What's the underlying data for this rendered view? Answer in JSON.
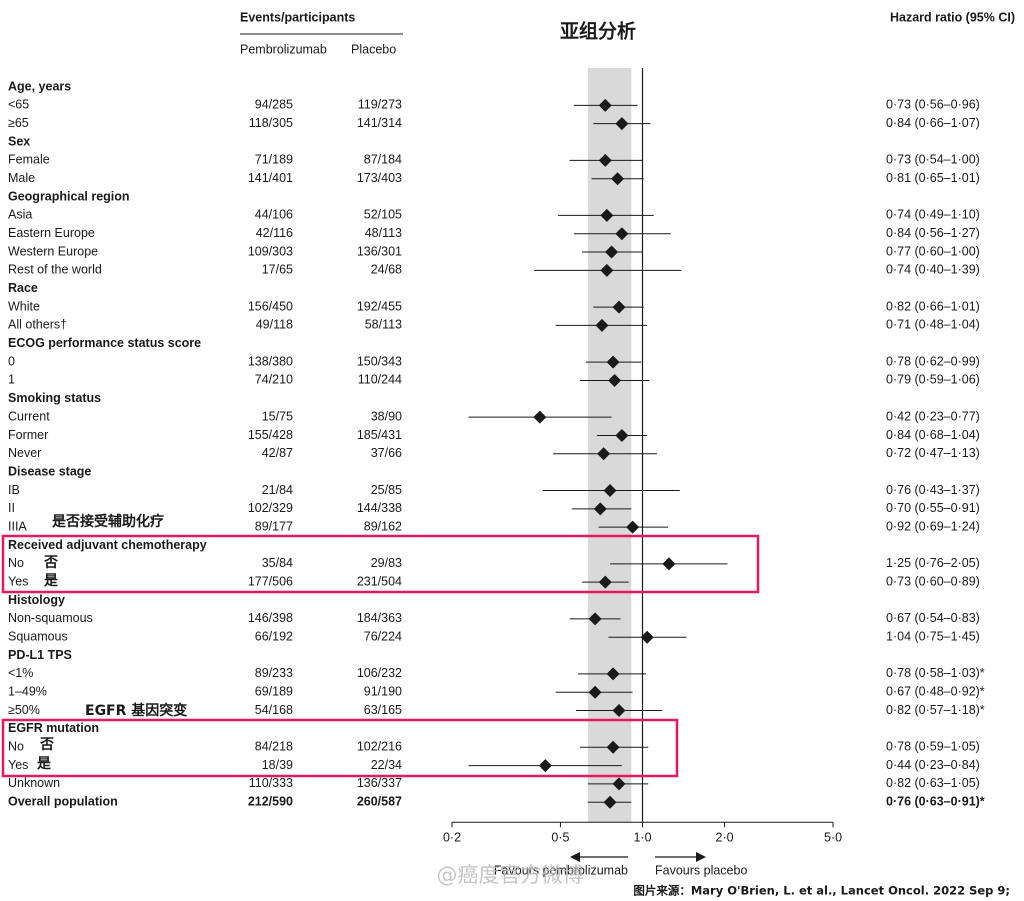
{
  "chart_data": {
    "type": "forest",
    "title": "亚组分析",
    "column_headers": {
      "events": "Events/participants",
      "pembro": "Pembrolizumab",
      "placebo": "Placebo",
      "hr": "Hazard ratio (95% CI)"
    },
    "xscale": "log",
    "xlim": [
      0.2,
      5.0
    ],
    "xticks": [
      {
        "value": 0.2,
        "label": "0·2"
      },
      {
        "value": 0.5,
        "label": "0·5"
      },
      {
        "value": 1.0,
        "label": "1·0"
      },
      {
        "value": 2.0,
        "label": "2·0"
      },
      {
        "value": 5.0,
        "label": "5·0"
      }
    ],
    "reference_line": 1.0,
    "favours_left": "Favours pembrolizumab",
    "favours_right": "Favours placebo",
    "color": "#1a1a1a",
    "band_color": "#d9d9d9",
    "rows": [
      {
        "label": "Age, years"
      },
      {
        "label": "<65",
        "pembro": "94/285",
        "placebo": "119/273",
        "hr": 0.73,
        "lo": 0.56,
        "hi": 0.96,
        "hr_label": "0·73 (0·56–0·96)"
      },
      {
        "label": "≥65",
        "pembro": "118/305",
        "placebo": "141/314",
        "hr": 0.84,
        "lo": 0.66,
        "hi": 1.07,
        "hr_label": "0·84 (0·66–1·07)"
      },
      {
        "label": "Sex"
      },
      {
        "label": "Female",
        "pembro": "71/189",
        "placebo": "87/184",
        "hr": 0.73,
        "lo": 0.54,
        "hi": 1.0,
        "hr_label": "0·73 (0·54–1·00)"
      },
      {
        "label": "Male",
        "pembro": "141/401",
        "placebo": "173/403",
        "hr": 0.81,
        "lo": 0.65,
        "hi": 1.01,
        "hr_label": "0·81 (0·65–1·01)"
      },
      {
        "label": "Geographical region"
      },
      {
        "label": "Asia",
        "pembro": "44/106",
        "placebo": "52/105",
        "hr": 0.74,
        "lo": 0.49,
        "hi": 1.1,
        "hr_label": "0·74 (0·49–1·10)"
      },
      {
        "label": "Eastern Europe",
        "pembro": "42/116",
        "placebo": "48/113",
        "hr": 0.84,
        "lo": 0.56,
        "hi": 1.27,
        "hr_label": "0·84 (0·56–1·27)"
      },
      {
        "label": "Western Europe",
        "pembro": "109/303",
        "placebo": "136/301",
        "hr": 0.77,
        "lo": 0.6,
        "hi": 1.0,
        "hr_label": "0·77 (0·60–1·00)"
      },
      {
        "label": "Rest of the world",
        "pembro": "17/65",
        "placebo": "24/68",
        "hr": 0.74,
        "lo": 0.4,
        "hi": 1.39,
        "hr_label": "0·74 (0·40–1·39)"
      },
      {
        "label": "Race"
      },
      {
        "label": "White",
        "pembro": "156/450",
        "placebo": "192/455",
        "hr": 0.82,
        "lo": 0.66,
        "hi": 1.01,
        "hr_label": "0·82 (0·66–1·01)"
      },
      {
        "label": "All others†",
        "pembro": "49/118",
        "placebo": "58/113",
        "hr": 0.71,
        "lo": 0.48,
        "hi": 1.04,
        "hr_label": "0·71 (0·48–1·04)"
      },
      {
        "label": "ECOG performance status score"
      },
      {
        "label": "0",
        "pembro": "138/380",
        "placebo": "150/343",
        "hr": 0.78,
        "lo": 0.62,
        "hi": 0.99,
        "hr_label": "0·78 (0·62–0·99)"
      },
      {
        "label": "1",
        "pembro": "74/210",
        "placebo": "110/244",
        "hr": 0.79,
        "lo": 0.59,
        "hi": 1.06,
        "hr_label": "0·79 (0·59–1·06)"
      },
      {
        "label": "Smoking status"
      },
      {
        "label": "Current",
        "pembro": "15/75",
        "placebo": "38/90",
        "hr": 0.42,
        "lo": 0.23,
        "hi": 0.77,
        "hr_label": "0·42 (0·23–0·77)"
      },
      {
        "label": "Former",
        "pembro": "155/428",
        "placebo": "185/431",
        "hr": 0.84,
        "lo": 0.68,
        "hi": 1.04,
        "hr_label": "0·84 (0·68–1·04)"
      },
      {
        "label": "Never",
        "pembro": "42/87",
        "placebo": "37/66",
        "hr": 0.72,
        "lo": 0.47,
        "hi": 1.13,
        "hr_label": "0·72 (0·47–1·13)"
      },
      {
        "label": "Disease stage"
      },
      {
        "label": "IB",
        "pembro": "21/84",
        "placebo": "25/85",
        "hr": 0.76,
        "lo": 0.43,
        "hi": 1.37,
        "hr_label": "0·76 (0·43–1·37)"
      },
      {
        "label": "II",
        "pembro": "102/329",
        "placebo": "144/338",
        "hr": 0.7,
        "lo": 0.55,
        "hi": 0.91,
        "hr_label": "0·70 (0·55–0·91)"
      },
      {
        "label": "IIIA",
        "pembro": "89/177",
        "placebo": "89/162",
        "hr": 0.92,
        "lo": 0.69,
        "hi": 1.24,
        "hr_label": "0·92 (0·69–1·24)"
      },
      {
        "label": "Received adjuvant chemotherapy"
      },
      {
        "label": "No",
        "pembro": "35/84",
        "placebo": "29/83",
        "hr": 1.25,
        "lo": 0.76,
        "hi": 2.05,
        "hr_label": "1·25 (0·76–2·05)"
      },
      {
        "label": "Yes",
        "pembro": "177/506",
        "placebo": "231/504",
        "hr": 0.73,
        "lo": 0.6,
        "hi": 0.89,
        "hr_label": "0·73 (0·60–0·89)"
      },
      {
        "label": "Histology"
      },
      {
        "label": "Non-squamous",
        "pembro": "146/398",
        "placebo": "184/363",
        "hr": 0.67,
        "lo": 0.54,
        "hi": 0.83,
        "hr_label": "0·67 (0·54–0·83)"
      },
      {
        "label": "Squamous",
        "pembro": "66/192",
        "placebo": "76/224",
        "hr": 1.04,
        "lo": 0.75,
        "hi": 1.45,
        "hr_label": "1·04 (0·75–1·45)"
      },
      {
        "label": "PD-L1 TPS"
      },
      {
        "label": "<1%",
        "pembro": "89/233",
        "placebo": "106/232",
        "hr": 0.78,
        "lo": 0.58,
        "hi": 1.03,
        "hr_label": "0·78 (0·58–1·03)*"
      },
      {
        "label": "1–49%",
        "pembro": "69/189",
        "placebo": "91/190",
        "hr": 0.67,
        "lo": 0.48,
        "hi": 0.92,
        "hr_label": "0·67 (0·48–0·92)*"
      },
      {
        "label": "≥50%",
        "pembro": "54/168",
        "placebo": "63/165",
        "hr": 0.82,
        "lo": 0.57,
        "hi": 1.18,
        "hr_label": "0·82 (0·57–1·18)*"
      },
      {
        "label": "EGFR mutation"
      },
      {
        "label": "No",
        "pembro": "84/218",
        "placebo": "102/216",
        "hr": 0.78,
        "lo": 0.59,
        "hi": 1.05,
        "hr_label": "0·78 (0·59–1·05)"
      },
      {
        "label": "Yes",
        "pembro": "18/39",
        "placebo": "22/34",
        "hr": 0.44,
        "lo": 0.23,
        "hi": 0.84,
        "hr_label": "0·44 (0·23–0·84)"
      },
      {
        "label": "Unknown",
        "pembro": "110/333",
        "placebo": "136/337",
        "hr": 0.82,
        "lo": 0.63,
        "hi": 1.05,
        "hr_label": "0·82 (0·63–1·05)"
      },
      {
        "label": "Overall population",
        "pembro": "212/590",
        "placebo": "260/587",
        "hr": 0.76,
        "lo": 0.63,
        "hi": 0.91,
        "hr_label": "0·76 (0·63–0·91)*",
        "bold": true
      }
    ],
    "annotations": {
      "chemo_note": "是否接受辅助化疗",
      "chemo_no": "否",
      "chemo_yes": "是",
      "egfr_note": "EGFR 基因突变",
      "egfr_no": "否",
      "egfr_yes": "是",
      "source": "图片来源：Mary O'Brien, L. et al., Lancet Oncol. 2022 Sep 9;",
      "watermark": "@癌度官方微博"
    }
  }
}
